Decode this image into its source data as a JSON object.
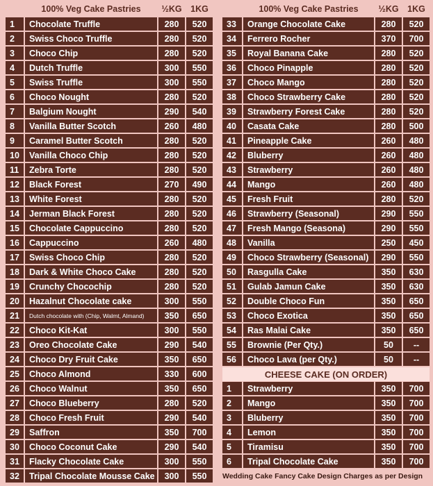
{
  "left": {
    "header": [
      "100% Veg Cake Pastries",
      "½KG",
      "1KG"
    ],
    "rows": [
      [
        "1",
        "Chocolate Truffle",
        "280",
        "520"
      ],
      [
        "2",
        "Swiss Choco Truffle",
        "280",
        "520"
      ],
      [
        "3",
        "Choco Chip",
        "280",
        "520"
      ],
      [
        "4",
        "Dutch Truffle",
        "300",
        "550"
      ],
      [
        "5",
        "Swiss Truffle",
        "300",
        "550"
      ],
      [
        "6",
        "Choco Nought",
        "280",
        "520"
      ],
      [
        "7",
        "Balgium Nought",
        "290",
        "540"
      ],
      [
        "8",
        "Vanilla Butter Scotch",
        "260",
        "480"
      ],
      [
        "9",
        "Caramel Butter Scotch",
        "280",
        "520"
      ],
      [
        "10",
        "Vanilla Choco Chip",
        "280",
        "520"
      ],
      [
        "11",
        "Zebra Torte",
        "280",
        "520"
      ],
      [
        "12",
        "Black Forest",
        "270",
        "490"
      ],
      [
        "13",
        "White Forest",
        "280",
        "520"
      ],
      [
        "14",
        "Jerman Black Forest",
        "280",
        "520"
      ],
      [
        "15",
        "Chocolate Cappuccino",
        "280",
        "520"
      ],
      [
        "16",
        "Cappuccino",
        "260",
        "480"
      ],
      [
        "17",
        "Swiss Choco Chip",
        "280",
        "520"
      ],
      [
        "18",
        "Dark & White Choco Cake",
        "280",
        "520"
      ],
      [
        "19",
        "Crunchy Chocochip",
        "280",
        "520"
      ],
      [
        "20",
        "Hazalnut Chocolate cake",
        "300",
        "550"
      ],
      [
        "21",
        "Dutch chocolate with (Chip, Walmt, Almand)",
        "350",
        "650"
      ],
      [
        "22",
        "Choco Kit-Kat",
        "300",
        "550"
      ],
      [
        "23",
        "Oreo Chocolate Cake",
        "290",
        "540"
      ],
      [
        "24",
        "Choco Dry Fruit Cake",
        "350",
        "650"
      ],
      [
        "25",
        "Choco Almond",
        "330",
        "600"
      ],
      [
        "26",
        "Choco Walnut",
        "350",
        "650"
      ],
      [
        "27",
        "Choco Blueberry",
        "280",
        "520"
      ],
      [
        "28",
        "Choco Fresh Fruit",
        "290",
        "540"
      ],
      [
        "29",
        "Saffron",
        "350",
        "700"
      ],
      [
        "30",
        "Choco Coconut Cake",
        "290",
        "540"
      ],
      [
        "31",
        "Flacky Chocolate Cake",
        "300",
        "550"
      ],
      [
        "32",
        "Tripal Chocolate  Mousse Cake",
        "300",
        "550"
      ]
    ]
  },
  "right": {
    "header": [
      "100% Veg Cake Pastries",
      "½KG",
      "1KG"
    ],
    "rows": [
      [
        "33",
        "Orange Chocolate Cake",
        "280",
        "520"
      ],
      [
        "34",
        "Ferrero Rocher",
        "370",
        "700"
      ],
      [
        "35",
        "Royal Banana Cake",
        "280",
        "520"
      ],
      [
        "36",
        "Choco Pinapple",
        "280",
        "520"
      ],
      [
        "37",
        "Choco Mango",
        "280",
        "520"
      ],
      [
        "38",
        "Choco Strawberry Cake",
        "280",
        "520"
      ],
      [
        "39",
        "Strawberry Forest Cake",
        "280",
        "520"
      ],
      [
        "40",
        "Casata Cake",
        "280",
        "500"
      ],
      [
        "41",
        "Pineapple Cake",
        "260",
        "480"
      ],
      [
        "42",
        "Bluberry",
        "260",
        "480"
      ],
      [
        "43",
        "Strawberry",
        "260",
        "480"
      ],
      [
        "44",
        "Mango",
        "260",
        "480"
      ],
      [
        "45",
        "Fresh Fruit",
        "280",
        "520"
      ],
      [
        "46",
        "Strawberry (Seasonal)",
        "290",
        "550"
      ],
      [
        "47",
        "Fresh Mango (Seasona)",
        "290",
        "550"
      ],
      [
        "48",
        "Vanilla",
        "250",
        "450"
      ],
      [
        "49",
        "Choco Strawberry (Seasonal)",
        "290",
        "550"
      ],
      [
        "50",
        "Rasgulla Cake",
        "350",
        "630"
      ],
      [
        "51",
        "Gulab Jamun Cake",
        "350",
        "630"
      ],
      [
        "52",
        "Double Choco Fun",
        "350",
        "650"
      ],
      [
        "53",
        "Choco Exotica",
        "350",
        "650"
      ],
      [
        "54",
        "Ras Malai Cake",
        "350",
        "650"
      ],
      [
        "55",
        "Brownie (Per Qty.)",
        "50",
        "--"
      ],
      [
        "56",
        "Choco Lava (per Qty.)",
        "50",
        "--"
      ]
    ],
    "cheese_title": "CHEESE CAKE (ON ORDER)",
    "cheese_rows": [
      [
        "1",
        "Strawberry",
        "350",
        "700"
      ],
      [
        "2",
        "Mango",
        "350",
        "700"
      ],
      [
        "3",
        "Bluberry",
        "350",
        "700"
      ],
      [
        "4",
        "Lemon",
        "350",
        "700"
      ],
      [
        "5",
        "Tiramisu",
        "350",
        "700"
      ],
      [
        "6",
        "Tripal Chocolate Cake",
        "350",
        "700"
      ]
    ],
    "footer": "Wedding Cake Fancy Cake Design Charges as per Design"
  }
}
